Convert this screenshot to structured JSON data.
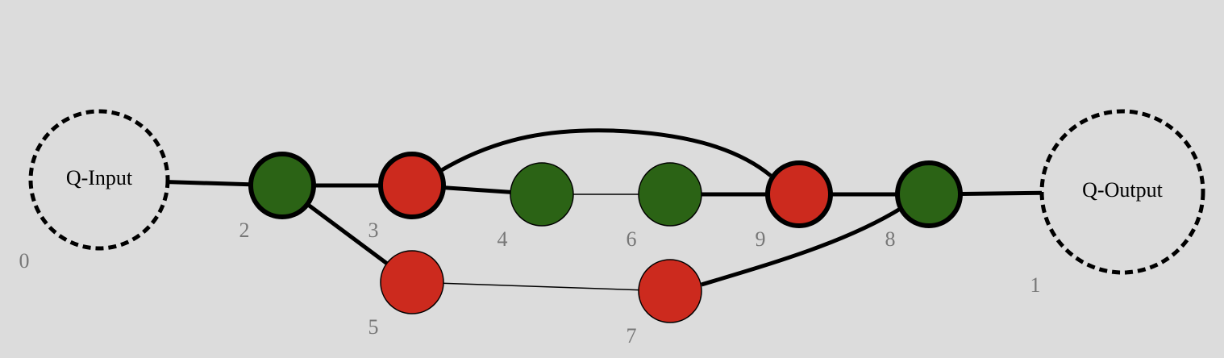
{
  "colors": {
    "background": "#dcdcdc",
    "z_spider": "#2b6315",
    "x_spider": "#cc2a1e",
    "edge": "#000000",
    "label": "#777777"
  },
  "boundaries": [
    {
      "id": "0",
      "text": "Q-Input",
      "index_label": "0"
    },
    {
      "id": "1",
      "text": "Q-Output",
      "index_label": "1"
    }
  ],
  "spiders": [
    {
      "id": "2",
      "kind": "z",
      "bold": true,
      "label": "2"
    },
    {
      "id": "3",
      "kind": "x",
      "bold": true,
      "label": "3"
    },
    {
      "id": "4",
      "kind": "z",
      "bold": false,
      "label": "4"
    },
    {
      "id": "6",
      "kind": "z",
      "bold": false,
      "label": "6"
    },
    {
      "id": "9",
      "kind": "x",
      "bold": true,
      "label": "9"
    },
    {
      "id": "8",
      "kind": "z",
      "bold": true,
      "label": "8"
    },
    {
      "id": "5",
      "kind": "x",
      "bold": false,
      "label": "5"
    },
    {
      "id": "7",
      "kind": "x",
      "bold": false,
      "label": "7"
    }
  ],
  "edges": [
    {
      "from": "0",
      "to": "2",
      "weight": "bold"
    },
    {
      "from": "2",
      "to": "3",
      "weight": "bold"
    },
    {
      "from": "2",
      "to": "5",
      "weight": "bold"
    },
    {
      "from": "3",
      "to": "4",
      "weight": "bold"
    },
    {
      "from": "3",
      "to": "9",
      "weight": "bold"
    },
    {
      "from": "4",
      "to": "6",
      "weight": "thin"
    },
    {
      "from": "6",
      "to": "9",
      "weight": "bold"
    },
    {
      "from": "9",
      "to": "8",
      "weight": "bold"
    },
    {
      "from": "8",
      "to": "1",
      "weight": "bold"
    },
    {
      "from": "5",
      "to": "7",
      "weight": "thin"
    },
    {
      "from": "7",
      "to": "8",
      "weight": "bold"
    }
  ]
}
